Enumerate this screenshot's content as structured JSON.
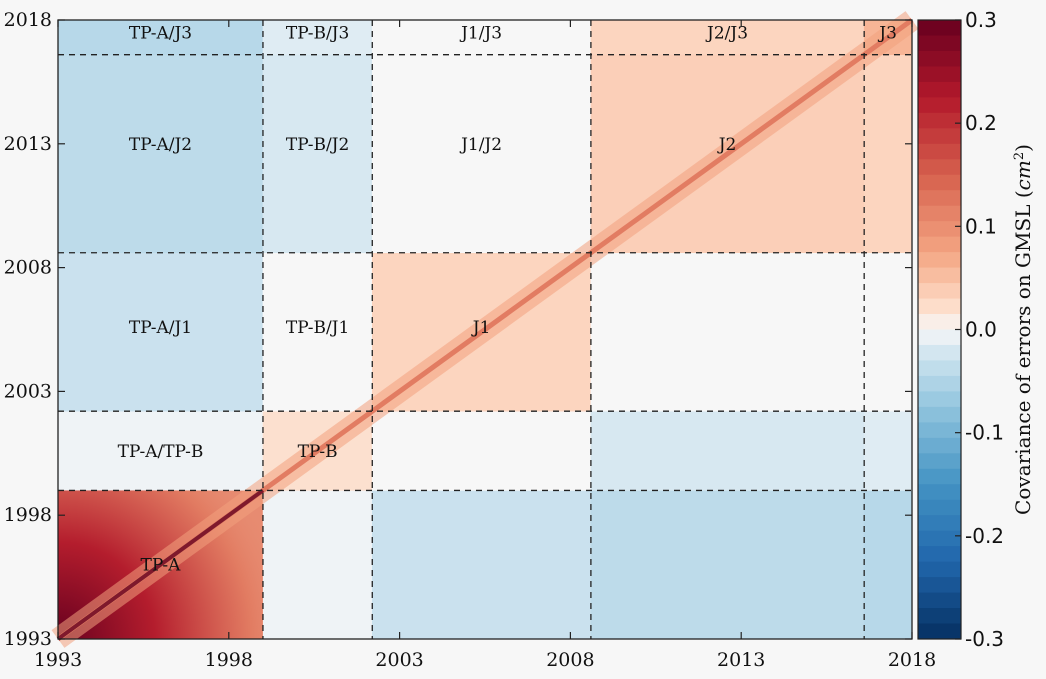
{
  "chart_data": {
    "type": "heatmap",
    "title": "",
    "xlabel": "",
    "ylabel": "",
    "x_range": [
      1993,
      2018
    ],
    "y_range": [
      1993,
      2018
    ],
    "x_ticks": [
      "1993",
      "1998",
      "2003",
      "2008",
      "2013",
      "2018"
    ],
    "y_ticks": [
      "1993",
      "1998",
      "2003",
      "2008",
      "2013",
      "2018"
    ],
    "mission_boundaries": [
      1999.0,
      2002.2,
      2008.6,
      2016.6
    ],
    "grid": false,
    "colormap": "RdBu_r",
    "colorbar": {
      "label": "Covariance of errors on GMSL (cm²)",
      "label_prefix": "Covariance of errors on GMSL (",
      "label_unit": "cm",
      "label_exp": "2",
      "label_suffix": ")",
      "range": [
        -0.3,
        0.3
      ],
      "ticks": [
        "0.3",
        "0.2",
        "0.1",
        "0.0",
        "-0.1",
        "-0.2",
        "-0.3"
      ]
    },
    "regions": [
      {
        "label": "TP-A/J3",
        "x": 1996.0,
        "y": 2017.5,
        "value": -0.045
      },
      {
        "label": "TP-B/J3",
        "x": 2000.6,
        "y": 2017.5,
        "value": -0.015
      },
      {
        "label": "J1/J3",
        "x": 2005.4,
        "y": 2017.5,
        "value": 0.0
      },
      {
        "label": "J2/J3",
        "x": 2012.6,
        "y": 2017.5,
        "value": 0.03
      },
      {
        "label": "J3",
        "x": 2017.3,
        "y": 2017.5,
        "value": 0.06
      },
      {
        "label": "TP-A/J2",
        "x": 1996.0,
        "y": 2013.0,
        "value": -0.04
      },
      {
        "label": "TP-B/J2",
        "x": 2000.6,
        "y": 2013.0,
        "value": -0.02
      },
      {
        "label": "J1/J2",
        "x": 2005.4,
        "y": 2013.0,
        "value": 0.0
      },
      {
        "label": "J2",
        "x": 2012.6,
        "y": 2013.0,
        "value": 0.035
      },
      {
        "label": "TP-A/J1",
        "x": 1996.0,
        "y": 2005.6,
        "value": -0.03
      },
      {
        "label": "TP-B/J1",
        "x": 2000.6,
        "y": 2005.6,
        "value": 0.0
      },
      {
        "label": "J1",
        "x": 2005.4,
        "y": 2005.6,
        "value": 0.03
      },
      {
        "label": "TP-A/TP-B",
        "x": 1996.0,
        "y": 2000.6,
        "value": -0.005
      },
      {
        "label": "TP-B",
        "x": 2000.6,
        "y": 2000.6,
        "value": 0.02
      },
      {
        "label": "TP-A",
        "x": 1996.0,
        "y": 1996.0,
        "value": 0.12
      }
    ],
    "diagonal": {
      "peak_value": 0.3,
      "band_value": 0.08
    }
  }
}
